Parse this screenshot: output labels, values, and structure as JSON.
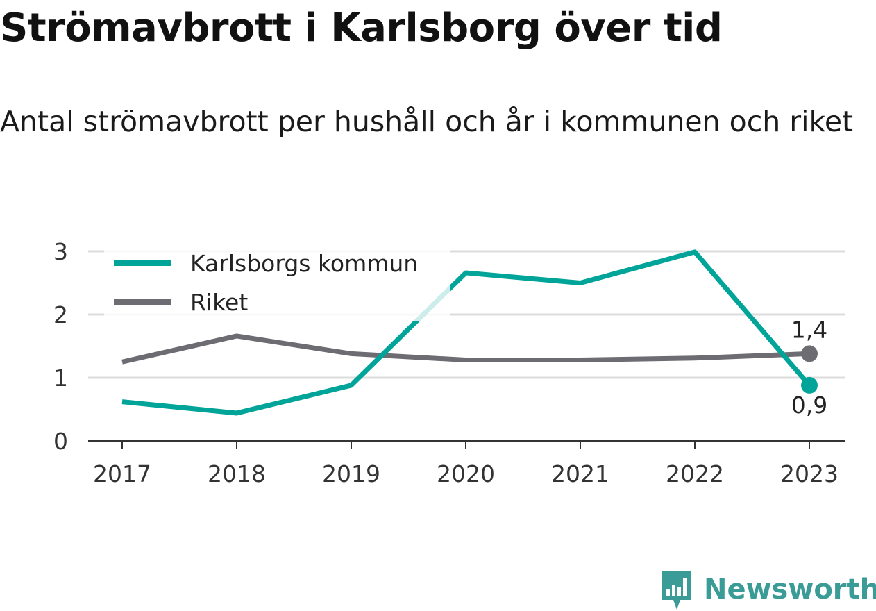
{
  "header": {
    "title": "Strömavbrott i Karlsborg över tid",
    "subtitle": "Antal strömavbrott per hushåll och år i kommunen och riket"
  },
  "brand": {
    "name": "Newsworthy",
    "icon": "newsworthy-logo-icon",
    "color": "#3b9b96"
  },
  "chart_data": {
    "type": "line",
    "title": "Strömavbrott i Karlsborg över tid",
    "subtitle": "Antal strömavbrott per hushåll och år i kommunen och riket",
    "xlabel": "",
    "ylabel": "",
    "categories": [
      "2017",
      "2018",
      "2019",
      "2020",
      "2021",
      "2022",
      "2023"
    ],
    "ylim": [
      0,
      3
    ],
    "yticks": [
      0,
      1,
      2,
      3
    ],
    "grid": true,
    "legend": "top-left",
    "series": [
      {
        "name": "Karlsborgs kommun",
        "color": "#00a498",
        "values": [
          0.62,
          0.44,
          0.88,
          2.66,
          2.5,
          2.99,
          0.88
        ],
        "end_label": "0,9"
      },
      {
        "name": "Riket",
        "color": "#6d6c72",
        "values": [
          1.25,
          1.66,
          1.38,
          1.28,
          1.28,
          1.31,
          1.38
        ],
        "end_label": "1,4"
      }
    ]
  }
}
